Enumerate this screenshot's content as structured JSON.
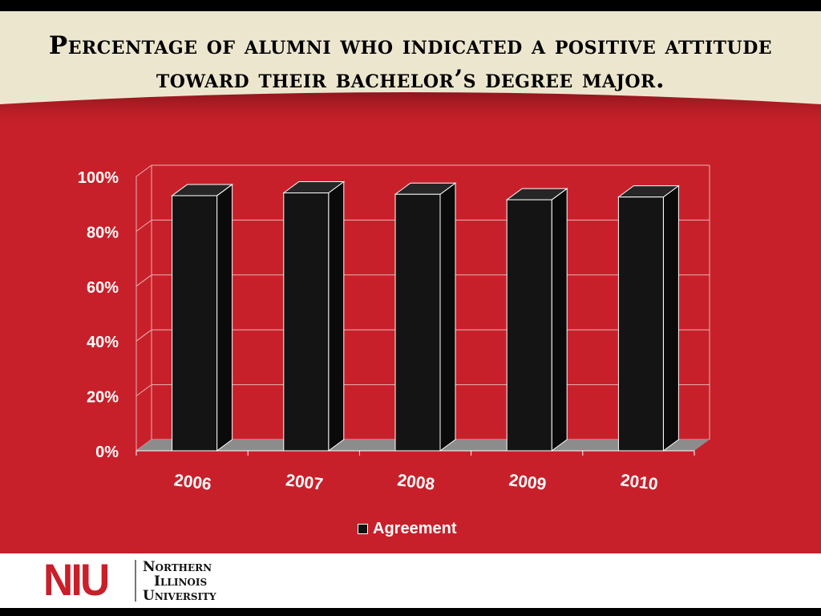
{
  "slide": {
    "title": "Percentage of alumni who indicated a positive attitude toward their bachelor’s degree major."
  },
  "logo": {
    "mark": "NIU",
    "lines": [
      "Northern",
      "Illinois",
      "University"
    ]
  },
  "colors": {
    "background": "#c8202a",
    "header": "#ede6cf",
    "bar": "#141414",
    "floor": "#8c8c8c",
    "text": "#ffffff"
  },
  "chart_data": {
    "type": "bar",
    "style": "3d-column",
    "categories": [
      "2006",
      "2007",
      "2008",
      "2009",
      "2010"
    ],
    "series": [
      {
        "name": "Agreement",
        "values": [
          93,
          94,
          93.5,
          91.5,
          92.5
        ]
      }
    ],
    "yticks": [
      "0%",
      "20%",
      "40%",
      "60%",
      "80%",
      "100%"
    ],
    "ylim": [
      0,
      100
    ],
    "grid": true,
    "legend_position": "bottom"
  }
}
